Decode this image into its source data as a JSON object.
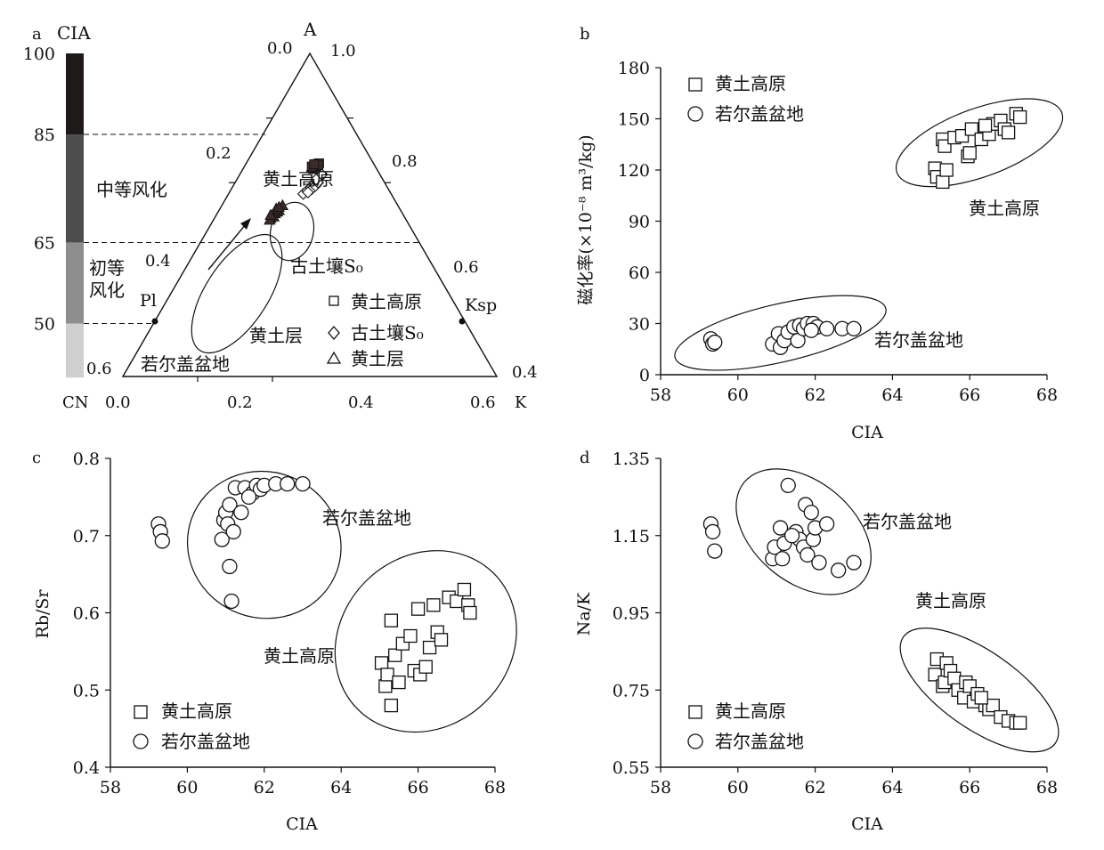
{
  "chart_data": [
    {
      "panel": "a",
      "type": "ternary",
      "vertex_labels": {
        "top": "A",
        "left": "CN",
        "right": "K"
      },
      "left_axis_ticks": [
        "0.0",
        "0.2",
        "0.4",
        "0.6"
      ],
      "right_axis_ticks": [
        "1.0",
        "0.8",
        "0.6",
        "0.4"
      ],
      "bottom_axis_ticks": [
        "0.0",
        "0.2",
        "0.4",
        "0.6"
      ],
      "cia_bar": {
        "title": "CIA",
        "ticks": [
          "100",
          "85",
          "65",
          "50"
        ],
        "zones": [
          {
            "from": 85,
            "to": 100,
            "color": "#1e1a1a",
            "label": ""
          },
          {
            "from": 65,
            "to": 85,
            "color": "#4d4d4d",
            "label": "中等风化"
          },
          {
            "from": 50,
            "to": 65,
            "color": "#8e8e8e",
            "label": "初等风化"
          },
          {
            "from": 40,
            "to": 50,
            "color": "#cfcfcf",
            "label": ""
          }
        ]
      },
      "reference_points": [
        {
          "label": "Pl",
          "a": 0.5,
          "k": 0.0
        },
        {
          "label": "Ksp",
          "a": 0.5,
          "k": 0.5
        }
      ],
      "region_labels": [
        "黄土高原",
        "古土壤S₀",
        "黄土层",
        "若尔盖盆地"
      ],
      "legend": [
        {
          "marker": "square",
          "label": "黄土高原"
        },
        {
          "marker": "diamond",
          "label": "古土壤S₀"
        },
        {
          "marker": "triangle",
          "label": "黄土层"
        }
      ],
      "series": [
        {
          "name": "黄土高原",
          "marker": "square",
          "points": [
            [
              0.645,
              0.185
            ],
            [
              0.65,
              0.185
            ],
            [
              0.655,
              0.188
            ],
            [
              0.648,
              0.19
            ],
            [
              0.652,
              0.192
            ],
            [
              0.658,
              0.19
            ],
            [
              0.642,
              0.188
            ],
            [
              0.66,
              0.195
            ],
            [
              0.646,
              0.183
            ],
            [
              0.654,
              0.196
            ],
            [
              0.65,
              0.18
            ],
            [
              0.657,
              0.183
            ]
          ]
        },
        {
          "name": "古土壤S₀",
          "marker": "diamond",
          "points": [
            [
              0.565,
              0.2
            ],
            [
              0.575,
              0.205
            ],
            [
              0.585,
              0.21
            ],
            [
              0.595,
              0.212
            ],
            [
              0.605,
              0.215
            ],
            [
              0.615,
              0.218
            ],
            [
              0.625,
              0.22
            ],
            [
              0.58,
              0.215
            ],
            [
              0.59,
              0.22
            ],
            [
              0.6,
              0.222
            ],
            [
              0.57,
              0.21
            ],
            [
              0.61,
              0.212
            ]
          ]
        },
        {
          "name": "黄土层",
          "marker": "triangle",
          "points": [
            [
              0.49,
              0.15
            ],
            [
              0.5,
              0.15
            ],
            [
              0.505,
              0.155
            ],
            [
              0.495,
              0.156
            ],
            [
              0.51,
              0.158
            ],
            [
              0.485,
              0.15
            ],
            [
              0.515,
              0.16
            ],
            [
              0.52,
              0.15
            ],
            [
              0.53,
              0.162
            ],
            [
              0.5,
              0.145
            ],
            [
              0.525,
              0.155
            ]
          ]
        }
      ]
    },
    {
      "panel": "b",
      "type": "scatter",
      "xlabel": "CIA",
      "ylabel": "磁化率(×10⁻⁸ m³/kg)",
      "xlim": [
        58,
        68
      ],
      "ylim": [
        0,
        180
      ],
      "xticks": [
        58,
        60,
        62,
        64,
        66,
        68
      ],
      "yticks": [
        0,
        30,
        60,
        90,
        120,
        150,
        180
      ],
      "legend": [
        {
          "marker": "square",
          "label": "黄土高原"
        },
        {
          "marker": "circle",
          "label": "若尔盖盆地"
        }
      ],
      "region_labels": [
        "黄土高原",
        "若尔盖盆地"
      ],
      "series": [
        {
          "name": "黄土高原",
          "marker": "square",
          "points": [
            [
              65.1,
              121
            ],
            [
              65.15,
              116
            ],
            [
              65.3,
              113
            ],
            [
              65.3,
              138
            ],
            [
              65.35,
              134
            ],
            [
              65.6,
              139
            ],
            [
              65.8,
              140
            ],
            [
              65.95,
              128
            ],
            [
              66.05,
              144
            ],
            [
              66.3,
              138
            ],
            [
              66.5,
              141
            ],
            [
              66.6,
              147
            ],
            [
              66.8,
              149
            ],
            [
              66.9,
              144
            ],
            [
              67.0,
              142
            ],
            [
              67.2,
              153
            ],
            [
              67.3,
              151
            ],
            [
              65.4,
              120
            ],
            [
              66.0,
              130
            ],
            [
              66.4,
              146
            ]
          ]
        },
        {
          "name": "若尔盖盆地",
          "marker": "circle",
          "points": [
            [
              59.3,
              21
            ],
            [
              59.35,
              18
            ],
            [
              59.4,
              19
            ],
            [
              60.9,
              18
            ],
            [
              61.05,
              24
            ],
            [
              61.1,
              16
            ],
            [
              61.2,
              20
            ],
            [
              61.3,
              25
            ],
            [
              61.45,
              28
            ],
            [
              61.55,
              20
            ],
            [
              61.6,
              29
            ],
            [
              61.7,
              27
            ],
            [
              61.8,
              30
            ],
            [
              61.95,
              30
            ],
            [
              62.05,
              28
            ],
            [
              62.3,
              27
            ],
            [
              62.7,
              27
            ],
            [
              63.0,
              27
            ],
            [
              61.9,
              26
            ]
          ]
        }
      ],
      "ellipses": [
        {
          "cx": 66.25,
          "cy": 136,
          "rx": 2.27,
          "ry": 20,
          "angle": -20
        },
        {
          "cx": 61.1,
          "cy": 24.5,
          "rx": 2.8,
          "ry": 17,
          "angle": -13
        }
      ]
    },
    {
      "panel": "c",
      "type": "scatter",
      "xlabel": "CIA",
      "ylabel": "Rb/Sr",
      "xlim": [
        58,
        68
      ],
      "ylim": [
        0.4,
        0.8
      ],
      "xticks": [
        58,
        60,
        62,
        64,
        66,
        68
      ],
      "yticks": [
        "0.4",
        "0.5",
        "0.6",
        "0.7",
        "0.8"
      ],
      "legend": [
        {
          "marker": "square",
          "label": "黄土高原"
        },
        {
          "marker": "circle",
          "label": "若尔盖盆地"
        }
      ],
      "region_labels": [
        "若尔盖盆地",
        "黄土高原"
      ],
      "series": [
        {
          "name": "黄土高原",
          "marker": "square",
          "points": [
            [
              65.05,
              0.535
            ],
            [
              65.15,
              0.505
            ],
            [
              65.2,
              0.52
            ],
            [
              65.3,
              0.59
            ],
            [
              65.3,
              0.48
            ],
            [
              65.4,
              0.545
            ],
            [
              65.5,
              0.51
            ],
            [
              65.6,
              0.56
            ],
            [
              65.8,
              0.57
            ],
            [
              65.9,
              0.525
            ],
            [
              66.0,
              0.605
            ],
            [
              66.05,
              0.52
            ],
            [
              66.2,
              0.53
            ],
            [
              66.3,
              0.555
            ],
            [
              66.4,
              0.61
            ],
            [
              66.5,
              0.575
            ],
            [
              66.6,
              0.565
            ],
            [
              66.8,
              0.62
            ],
            [
              67.0,
              0.615
            ],
            [
              67.2,
              0.63
            ],
            [
              67.3,
              0.61
            ],
            [
              67.35,
              0.6
            ]
          ]
        },
        {
          "name": "若尔盖盆地",
          "marker": "circle",
          "points": [
            [
              59.25,
              0.715
            ],
            [
              59.3,
              0.705
            ],
            [
              59.35,
              0.693
            ],
            [
              60.9,
              0.695
            ],
            [
              60.95,
              0.72
            ],
            [
              61.0,
              0.73
            ],
            [
              61.05,
              0.715
            ],
            [
              61.1,
              0.74
            ],
            [
              61.1,
              0.66
            ],
            [
              61.15,
              0.615
            ],
            [
              61.2,
              0.705
            ],
            [
              61.25,
              0.762
            ],
            [
              61.4,
              0.73
            ],
            [
              61.5,
              0.762
            ],
            [
              61.7,
              0.755
            ],
            [
              61.8,
              0.765
            ],
            [
              61.9,
              0.76
            ],
            [
              62.0,
              0.765
            ],
            [
              62.3,
              0.767
            ],
            [
              62.6,
              0.767
            ],
            [
              63.0,
              0.767
            ],
            [
              61.6,
              0.75
            ]
          ]
        }
      ],
      "ellipses": [
        {
          "cx": 62.0,
          "cy": 0.688,
          "rx": 1.9,
          "ry": 0.1,
          "angle": -70
        },
        {
          "cx": 66.2,
          "cy": 0.563,
          "rx": 2.5,
          "ry": 0.11,
          "angle": -45
        }
      ]
    },
    {
      "panel": "d",
      "type": "scatter",
      "xlabel": "CIA",
      "ylabel": "Na/K",
      "xlim": [
        58,
        68
      ],
      "ylim": [
        0.55,
        1.35
      ],
      "xticks": [
        58,
        60,
        62,
        64,
        66,
        68
      ],
      "yticks": [
        "0.55",
        "0.75",
        "0.95",
        "1.15",
        "1.35"
      ],
      "legend": [
        {
          "marker": "square",
          "label": "黄土高原"
        },
        {
          "marker": "circle",
          "label": "若尔盖盆地"
        }
      ],
      "region_labels": [
        "若尔盖盆地",
        "黄土高原"
      ],
      "series": [
        {
          "name": "黄土高原",
          "marker": "square",
          "points": [
            [
              65.1,
              0.79
            ],
            [
              65.15,
              0.83
            ],
            [
              65.3,
              0.76
            ],
            [
              65.35,
              0.77
            ],
            [
              65.4,
              0.82
            ],
            [
              65.5,
              0.8
            ],
            [
              65.6,
              0.78
            ],
            [
              65.7,
              0.75
            ],
            [
              65.85,
              0.73
            ],
            [
              65.9,
              0.77
            ],
            [
              66.0,
              0.76
            ],
            [
              66.1,
              0.72
            ],
            [
              66.2,
              0.74
            ],
            [
              66.4,
              0.71
            ],
            [
              66.5,
              0.7
            ],
            [
              66.6,
              0.71
            ],
            [
              66.8,
              0.68
            ],
            [
              67.0,
              0.67
            ],
            [
              67.2,
              0.665
            ],
            [
              67.3,
              0.665
            ],
            [
              66.3,
              0.73
            ]
          ]
        },
        {
          "name": "若尔盖盆地",
          "marker": "circle",
          "points": [
            [
              59.3,
              1.18
            ],
            [
              59.35,
              1.16
            ],
            [
              59.4,
              1.11
            ],
            [
              60.9,
              1.09
            ],
            [
              60.95,
              1.12
            ],
            [
              61.1,
              1.17
            ],
            [
              61.15,
              1.09
            ],
            [
              61.2,
              1.13
            ],
            [
              61.3,
              1.28
            ],
            [
              61.5,
              1.16
            ],
            [
              61.6,
              1.14
            ],
            [
              61.7,
              1.12
            ],
            [
              61.75,
              1.23
            ],
            [
              61.8,
              1.1
            ],
            [
              61.9,
              1.21
            ],
            [
              61.95,
              1.14
            ],
            [
              62.0,
              1.17
            ],
            [
              62.1,
              1.08
            ],
            [
              62.3,
              1.18
            ],
            [
              62.6,
              1.06
            ],
            [
              63.0,
              1.08
            ],
            [
              61.4,
              1.15
            ]
          ]
        }
      ],
      "ellipses": [
        {
          "cx": 61.7,
          "cy": 1.16,
          "rx": 2.0,
          "ry": 0.13,
          "angle": 40
        },
        {
          "cx": 66.25,
          "cy": 0.75,
          "rx": 2.4,
          "ry": 0.1,
          "angle": 35
        }
      ]
    }
  ]
}
